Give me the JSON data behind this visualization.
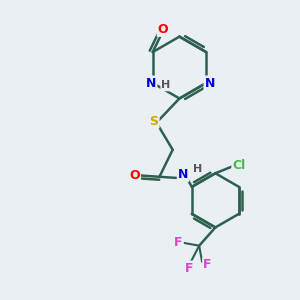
{
  "bg_color": "#eaeff3",
  "bond_color": "#2d6050",
  "atom_colors": {
    "O": "#ff0000",
    "N": "#0000dd",
    "S": "#ccaa00",
    "Cl": "#44bb44",
    "F": "#dd44cc",
    "H": "#555555",
    "C": "#2d6050"
  }
}
